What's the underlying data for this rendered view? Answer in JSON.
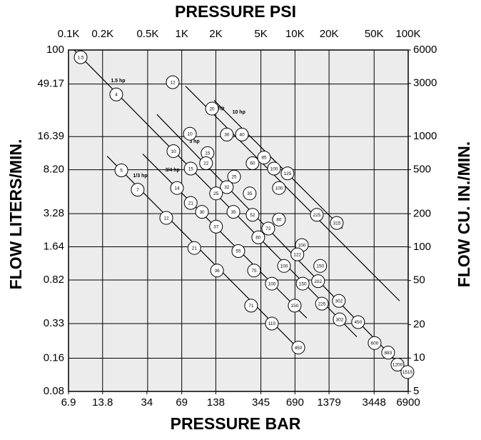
{
  "chart_data": {
    "type": "scatter",
    "x_label": "PRESSURE PSI",
    "x2_label": "PRESSURE BAR",
    "y_label": "FLOW LITERS/MIN.",
    "y2_label": "FLOW CU. IN./MIN.",
    "log_scale": true,
    "grid": true,
    "xlim": [
      100,
      100000
    ],
    "xticks": [
      {
        "value": 100,
        "label": "0.1K"
      },
      {
        "value": 200,
        "label": "0.2K"
      },
      {
        "value": 500,
        "label": "0.5K"
      },
      {
        "value": 1000,
        "label": "1K"
      },
      {
        "value": 2000,
        "label": "2K"
      },
      {
        "value": 5000,
        "label": "5K"
      },
      {
        "value": 10000,
        "label": "10K"
      },
      {
        "value": 20000,
        "label": "20K"
      },
      {
        "value": 50000,
        "label": "50K"
      },
      {
        "value": 100000,
        "label": "100K"
      }
    ],
    "x2lim": [
      6.9,
      6900
    ],
    "x2ticks": [
      6.9,
      13.8,
      34,
      69,
      138,
      345,
      690,
      1379,
      3448,
      6900
    ],
    "ylim": [
      0.08,
      100
    ],
    "yticks": [
      100,
      49.17,
      16.39,
      {
        "value": 8.2,
        "label": "8.20"
      },
      3.28,
      1.64,
      0.82,
      0.33,
      0.16,
      0.08
    ],
    "y2lim": [
      5,
      6000
    ],
    "y2ticks": [
      6000,
      3000,
      1000,
      500,
      200,
      100,
      50,
      20,
      10,
      5
    ],
    "lines": [
      {
        "name": "1/3 hp",
        "x": [
          219,
          11000
        ],
        "y": [
          10.9,
          0.19
        ]
      },
      {
        "name": "3/4 hp",
        "x": [
          452,
          12700
        ],
        "y": [
          11.4,
          0.37
        ]
      },
      {
        "name": "1.5 hp",
        "x": [
          112,
          35200
        ],
        "y": [
          100,
          0.25
        ]
      },
      {
        "name": "3 hp",
        "x": [
          604,
          90200
        ],
        "y": [
          26,
          0.13
        ]
      },
      {
        "name": "6 hp",
        "x": [
          1080,
          83900
        ],
        "y": [
          47,
          0.53
        ]
      },
      {
        "name": "10 hp",
        "x": [
          1930,
          26300
        ],
        "y": [
          35,
          2.4
        ]
      }
    ],
    "points": {
      "x": [
        128,
        264,
        832,
        1850,
        1180,
        2500,
        3400,
        844,
        1690,
        4220,
        5330,
        6530,
        8600,
        293,
        1200,
        1640,
        2900,
        2500,
        2010,
        7220,
        408,
        908,
        3980,
        1200,
        1510,
        2860,
        4220,
        730,
        2010,
        5810,
        4740,
        7220,
        15600,
        23400,
        1290,
        3160,
        11500,
        10500,
        16700,
        2050,
        4350,
        8000,
        6250,
        11700,
        16000,
        4100,
        9940,
        17300,
        24400,
        24800,
        36100,
        6250,
        50500,
        66500,
        80400,
        98400,
        10700
      ],
      "y": [
        86,
        39.5,
        51,
        29.4,
        17.4,
        17.1,
        17.1,
        12.1,
        11.6,
        9.4,
        10.6,
        8.4,
        7.6,
        8.1,
        8.4,
        9.4,
        7.1,
        5.7,
        5.0,
        5.6,
        5.4,
        5.6,
        5.0,
        4.1,
        3.4,
        3.4,
        3.2,
        3.0,
        2.5,
        2.4,
        2.0,
        2.9,
        3.2,
        2.7,
        1.6,
        1.5,
        1.7,
        1.4,
        1.1,
        1.0,
        1.0,
        1.1,
        0.76,
        0.76,
        0.8,
        0.48,
        0.48,
        0.5,
        0.53,
        0.36,
        0.34,
        0.33,
        0.22,
        0.18,
        0.14,
        0.12,
        0.2
      ],
      "labels": [
        "1.5",
        "4",
        "12",
        "20",
        "10",
        "30",
        "40",
        "10",
        "15",
        "60",
        "85",
        "100",
        "125",
        "5",
        "15",
        "22",
        "25",
        "32",
        "25",
        "100",
        "7",
        "14",
        "35",
        "21",
        "30",
        "35",
        "52",
        "12",
        "37",
        "72",
        "60",
        "80",
        "225",
        "315",
        "21",
        "55",
        "100",
        "122",
        "150",
        "36",
        "75",
        "100",
        "100",
        "150",
        "202",
        "71",
        "150",
        "225",
        "302",
        "302",
        "450",
        "110",
        "600",
        "883",
        "1200",
        "1515",
        "450"
      ]
    }
  }
}
